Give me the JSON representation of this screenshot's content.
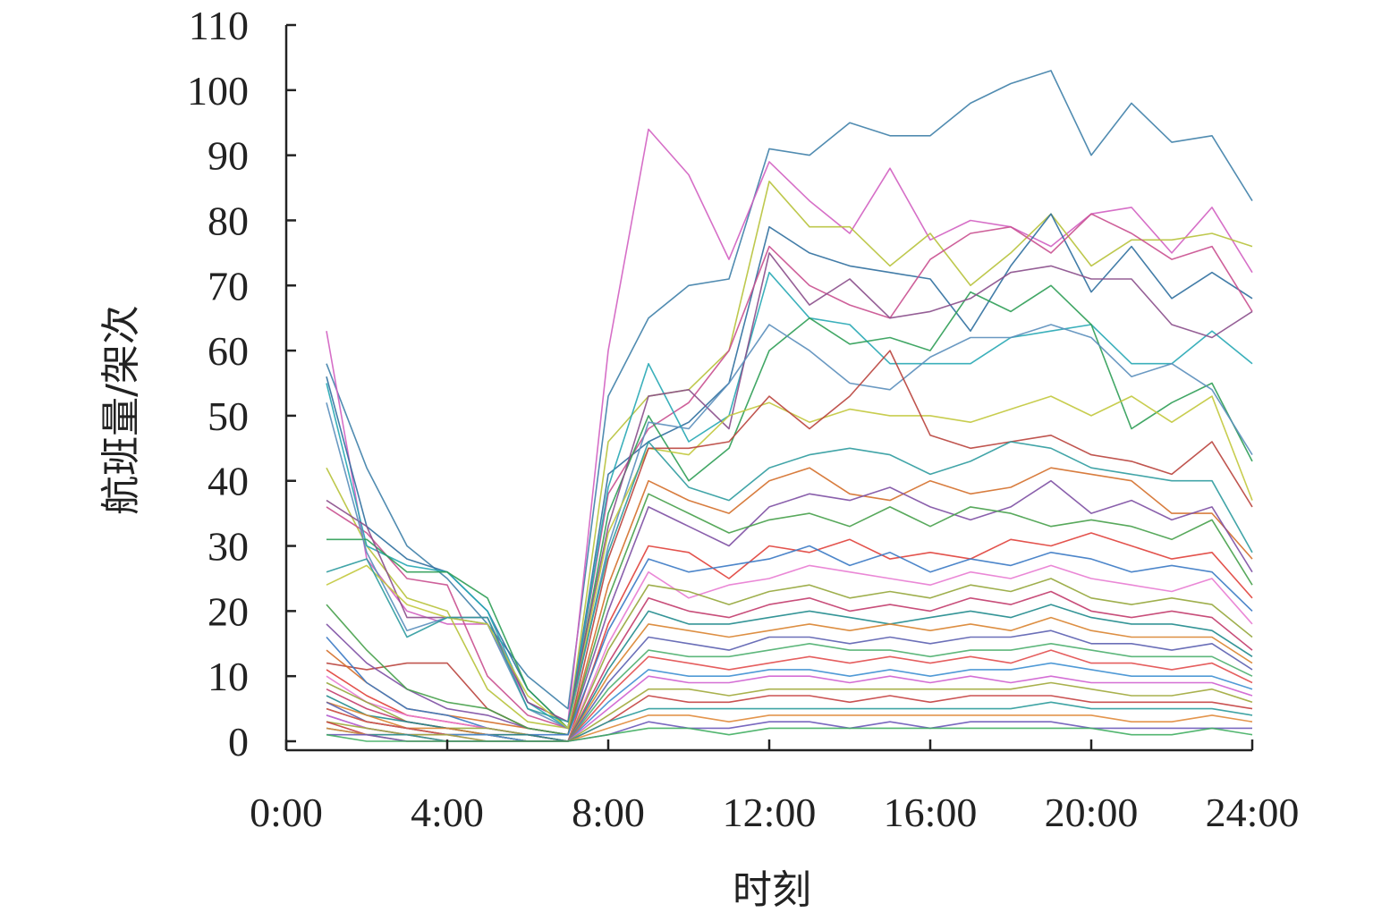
{
  "chart_data": {
    "type": "line",
    "xlabel": "时刻",
    "ylabel": "航班量/架次",
    "xlim": [
      0,
      24
    ],
    "ylim": [
      0,
      110
    ],
    "x_ticks": [
      0,
      4,
      8,
      12,
      16,
      20,
      24
    ],
    "x_tick_labels": [
      "0:00",
      "4:00",
      "8:00",
      "12:00",
      "16:00",
      "20:00",
      "24:00"
    ],
    "y_ticks": [
      0,
      10,
      20,
      30,
      40,
      50,
      60,
      70,
      80,
      90,
      100,
      110
    ],
    "y_tick_labels": [
      "0",
      "10",
      "20",
      "30",
      "40",
      "50",
      "60",
      "70",
      "80",
      "90",
      "100",
      "110"
    ],
    "grid": false,
    "legend": "none",
    "x": [
      1,
      2,
      3,
      4,
      5,
      6,
      7,
      8,
      9,
      10,
      11,
      12,
      13,
      14,
      15,
      16,
      17,
      18,
      19,
      20,
      21,
      22,
      23,
      24
    ],
    "series": [
      {
        "color": "#3e7fa8",
        "values": [
          58,
          42,
          30,
          25,
          18,
          10,
          5,
          53,
          65,
          70,
          71,
          91,
          90,
          95,
          93,
          93,
          98,
          101,
          103,
          90,
          98,
          92,
          93,
          83
        ]
      },
      {
        "color": "#d25fc1",
        "values": [
          63,
          28,
          20,
          18,
          18,
          6,
          3,
          60,
          94,
          87,
          74,
          89,
          83,
          78,
          88,
          77,
          80,
          79,
          76,
          81,
          82,
          75,
          82,
          72
        ]
      },
      {
        "color": "#b7c23a",
        "values": [
          42,
          30,
          22,
          20,
          8,
          3,
          2,
          46,
          53,
          54,
          60,
          86,
          79,
          79,
          73,
          78,
          70,
          75,
          81,
          73,
          77,
          77,
          78,
          76
        ]
      },
      {
        "color": "#2f6f9e",
        "values": [
          56,
          33,
          28,
          26,
          20,
          8,
          2,
          41,
          46,
          49,
          55,
          79,
          75,
          73,
          72,
          71,
          63,
          73,
          81,
          69,
          76,
          68,
          72,
          68
        ]
      },
      {
        "color": "#c94f8f",
        "values": [
          36,
          32,
          25,
          24,
          10,
          4,
          2,
          38,
          48,
          52,
          60,
          76,
          70,
          67,
          65,
          74,
          78,
          79,
          75,
          81,
          78,
          74,
          76,
          66
        ]
      },
      {
        "color": "#26a7b4",
        "values": [
          55,
          30,
          27,
          26,
          20,
          6,
          2,
          39,
          58,
          46,
          50,
          72,
          65,
          64,
          58,
          58,
          58,
          62,
          63,
          64,
          58,
          58,
          63,
          58
        ]
      },
      {
        "color": "#2e9d55",
        "values": [
          31,
          31,
          26,
          26,
          22,
          8,
          2,
          35,
          50,
          40,
          45,
          60,
          65,
          61,
          62,
          60,
          69,
          66,
          70,
          64,
          48,
          52,
          55,
          43
        ]
      },
      {
        "color": "#8a4e8b",
        "values": [
          37,
          33,
          19,
          19,
          19,
          6,
          3,
          33,
          53,
          54,
          48,
          75,
          67,
          71,
          65,
          66,
          68,
          72,
          73,
          71,
          71,
          64,
          62,
          66
        ]
      },
      {
        "color": "#5a8ebb",
        "values": [
          52,
          29,
          17,
          19,
          18,
          5,
          2,
          30,
          49,
          48,
          55,
          64,
          60,
          55,
          54,
          59,
          62,
          62,
          64,
          62,
          56,
          58,
          54,
          44
        ]
      },
      {
        "color": "#c2c83c",
        "values": [
          24,
          27,
          21,
          19,
          18,
          7,
          2,
          32,
          45,
          44,
          50,
          52,
          49,
          51,
          50,
          50,
          49,
          51,
          53,
          50,
          53,
          49,
          53,
          37
        ]
      },
      {
        "color": "#b9423c",
        "values": [
          12,
          11,
          12,
          12,
          5,
          2,
          1,
          28,
          45,
          45,
          46,
          53,
          48,
          53,
          60,
          47,
          45,
          46,
          47,
          44,
          43,
          41,
          46,
          36
        ]
      },
      {
        "color": "#2d9b9f",
        "values": [
          26,
          28,
          16,
          19,
          19,
          5,
          3,
          29,
          46,
          39,
          37,
          42,
          44,
          45,
          44,
          41,
          43,
          46,
          45,
          42,
          41,
          40,
          40,
          29
        ]
      },
      {
        "color": "#d46f2a",
        "values": [
          14,
          9,
          5,
          4,
          3,
          2,
          1,
          24,
          40,
          37,
          35,
          40,
          42,
          38,
          37,
          40,
          38,
          39,
          42,
          41,
          40,
          35,
          35,
          28
        ]
      },
      {
        "color": "#7d4fa3",
        "values": [
          18,
          12,
          8,
          5,
          4,
          2,
          1,
          20,
          36,
          33,
          30,
          36,
          38,
          37,
          39,
          36,
          34,
          36,
          40,
          35,
          37,
          34,
          36,
          26
        ]
      },
      {
        "color": "#46a04a",
        "values": [
          21,
          14,
          8,
          6,
          5,
          2,
          1,
          22,
          38,
          35,
          32,
          34,
          35,
          33,
          36,
          33,
          36,
          35,
          33,
          34,
          33,
          31,
          34,
          24
        ]
      },
      {
        "color": "#e0403a",
        "values": [
          11,
          7,
          4,
          3,
          2,
          1,
          0,
          18,
          30,
          29,
          25,
          30,
          29,
          31,
          28,
          29,
          28,
          31,
          30,
          32,
          30,
          28,
          29,
          22
        ]
      },
      {
        "color": "#3a79c4",
        "values": [
          16,
          9,
          5,
          4,
          2,
          1,
          1,
          17,
          28,
          26,
          27,
          28,
          30,
          27,
          29,
          26,
          28,
          27,
          29,
          28,
          26,
          27,
          26,
          20
        ]
      },
      {
        "color": "#e87bd1",
        "values": [
          10,
          6,
          4,
          3,
          2,
          1,
          0,
          15,
          26,
          22,
          24,
          25,
          27,
          26,
          25,
          24,
          26,
          25,
          27,
          25,
          24,
          23,
          25,
          18
        ]
      },
      {
        "color": "#95a63a",
        "values": [
          9,
          6,
          3,
          2,
          2,
          1,
          0,
          14,
          24,
          23,
          21,
          23,
          24,
          22,
          23,
          22,
          24,
          23,
          25,
          22,
          21,
          22,
          21,
          16
        ]
      },
      {
        "color": "#c23b6c",
        "values": [
          8,
          5,
          3,
          2,
          1,
          1,
          0,
          12,
          22,
          20,
          19,
          21,
          22,
          20,
          21,
          20,
          22,
          21,
          23,
          20,
          19,
          20,
          19,
          14
        ]
      },
      {
        "color": "#1f8a8c",
        "values": [
          7,
          4,
          3,
          2,
          1,
          1,
          0,
          11,
          20,
          18,
          18,
          19,
          20,
          19,
          18,
          19,
          20,
          19,
          21,
          19,
          18,
          18,
          17,
          13
        ]
      },
      {
        "color": "#d9832f",
        "values": [
          6,
          4,
          2,
          2,
          1,
          0,
          0,
          10,
          18,
          17,
          16,
          17,
          18,
          17,
          18,
          17,
          18,
          17,
          19,
          17,
          16,
          16,
          16,
          12
        ]
      },
      {
        "color": "#5b5fb0",
        "values": [
          6,
          3,
          2,
          1,
          1,
          0,
          0,
          9,
          16,
          15,
          14,
          16,
          16,
          15,
          16,
          15,
          16,
          16,
          17,
          15,
          15,
          14,
          15,
          11
        ]
      },
      {
        "color": "#4caf6e",
        "values": [
          5,
          3,
          2,
          1,
          1,
          0,
          0,
          8,
          14,
          13,
          13,
          14,
          15,
          14,
          14,
          13,
          14,
          14,
          15,
          14,
          13,
          13,
          13,
          10
        ]
      },
      {
        "color": "#e24d4d",
        "values": [
          5,
          3,
          2,
          1,
          1,
          0,
          0,
          7,
          13,
          12,
          11,
          12,
          13,
          12,
          13,
          12,
          13,
          12,
          14,
          12,
          12,
          11,
          12,
          9
        ]
      },
      {
        "color": "#3d8fd1",
        "values": [
          4,
          2,
          1,
          1,
          1,
          0,
          0,
          6,
          11,
          10,
          10,
          11,
          11,
          10,
          11,
          10,
          11,
          11,
          12,
          11,
          10,
          10,
          10,
          8
        ]
      },
      {
        "color": "#cf5fd0",
        "values": [
          4,
          2,
          1,
          1,
          0,
          0,
          0,
          5,
          10,
          9,
          9,
          10,
          10,
          9,
          10,
          9,
          10,
          9,
          10,
          9,
          9,
          9,
          9,
          7
        ]
      },
      {
        "color": "#a0a83a",
        "values": [
          3,
          2,
          1,
          1,
          0,
          0,
          0,
          4,
          8,
          8,
          7,
          8,
          8,
          8,
          8,
          8,
          8,
          8,
          9,
          8,
          7,
          7,
          8,
          6
        ]
      },
      {
        "color": "#c43f3f",
        "values": [
          3,
          1,
          1,
          0,
          0,
          0,
          0,
          3,
          7,
          6,
          6,
          7,
          7,
          6,
          7,
          6,
          7,
          7,
          7,
          6,
          6,
          6,
          6,
          5
        ]
      },
      {
        "color": "#2a9a9a",
        "values": [
          2,
          1,
          1,
          0,
          0,
          0,
          0,
          3,
          5,
          5,
          5,
          5,
          5,
          5,
          5,
          5,
          5,
          5,
          6,
          5,
          5,
          5,
          5,
          4
        ]
      },
      {
        "color": "#e08a3a",
        "values": [
          2,
          1,
          0,
          0,
          0,
          0,
          0,
          2,
          4,
          4,
          3,
          4,
          4,
          4,
          4,
          4,
          4,
          4,
          4,
          4,
          3,
          3,
          4,
          3
        ]
      },
      {
        "color": "#6a58b8",
        "values": [
          1,
          1,
          0,
          0,
          0,
          0,
          0,
          1,
          3,
          2,
          2,
          3,
          3,
          2,
          3,
          2,
          3,
          3,
          3,
          2,
          2,
          2,
          2,
          2
        ]
      },
      {
        "color": "#3fae60",
        "values": [
          1,
          0,
          0,
          0,
          0,
          0,
          0,
          1,
          2,
          2,
          1,
          2,
          2,
          2,
          2,
          2,
          2,
          2,
          2,
          2,
          1,
          1,
          2,
          1
        ]
      }
    ]
  }
}
